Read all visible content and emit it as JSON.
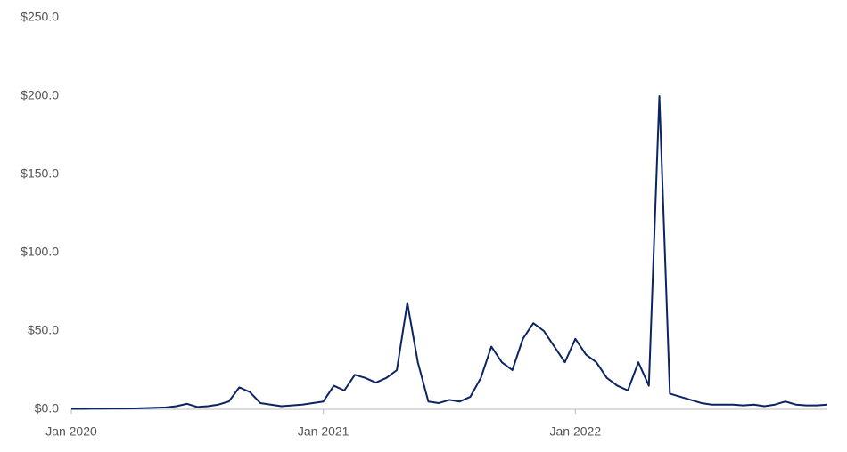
{
  "chart_data": {
    "type": "line",
    "categories": [
      "Jan 2020",
      null,
      null,
      null,
      null,
      null,
      null,
      null,
      null,
      null,
      null,
      null,
      null,
      null,
      null,
      null,
      null,
      null,
      null,
      null,
      null,
      null,
      null,
      null,
      "Jan 2021",
      null,
      null,
      null,
      null,
      null,
      null,
      null,
      null,
      null,
      null,
      null,
      null,
      null,
      null,
      null,
      null,
      null,
      null,
      null,
      null,
      null,
      null,
      null,
      "Jan 2022",
      null,
      null,
      null,
      null,
      null,
      null,
      null,
      null,
      null,
      null,
      null,
      null,
      null,
      null,
      null,
      null,
      null,
      null,
      null,
      null,
      null,
      null,
      null,
      null
    ],
    "series": [
      {
        "color": "#0d2463",
        "values": [
          0.3,
          0.3,
          0.4,
          0.4,
          0.5,
          0.5,
          0.6,
          0.8,
          1,
          1.2,
          2,
          3.5,
          1.5,
          2,
          3,
          5,
          14,
          11,
          4,
          3,
          2,
          2.5,
          3,
          4,
          5,
          15,
          12,
          22,
          20,
          17,
          20,
          25,
          68,
          30,
          5,
          4,
          6,
          5,
          8,
          20,
          40,
          30,
          25,
          45,
          55,
          50,
          40,
          30,
          45,
          35,
          30,
          20,
          15,
          12,
          30,
          15,
          200,
          10,
          8,
          6,
          4,
          3,
          3,
          3,
          2.5,
          3,
          2,
          3,
          5,
          3,
          2.5,
          2.5,
          3
        ]
      }
    ],
    "ylim": [
      0,
      250
    ],
    "yticks": [
      {
        "value": 0,
        "label": "$0.0"
      },
      {
        "value": 50,
        "label": "$50.0"
      },
      {
        "value": 100,
        "label": "$100.0"
      },
      {
        "value": 150,
        "label": "$150.0"
      },
      {
        "value": 200,
        "label": "$200.0"
      },
      {
        "value": 250,
        "label": "$250.0"
      }
    ],
    "grid": false
  }
}
